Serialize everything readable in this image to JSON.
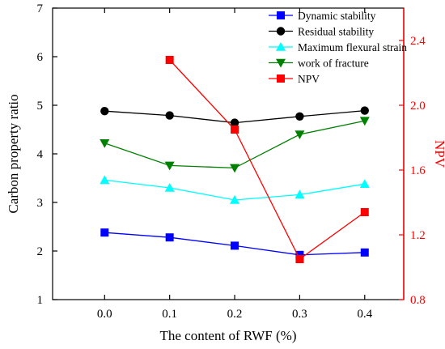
{
  "chart_data": {
    "type": "line",
    "title": "",
    "xlabel": "The content of RWF (%)",
    "ylabel": "Carbon property ratio",
    "y2label": "NPV",
    "x": [
      0.0,
      0.1,
      0.2,
      0.3,
      0.4
    ],
    "x_ticks": [
      "0.0",
      "0.1",
      "0.2",
      "0.3",
      "0.4"
    ],
    "xlim": [
      -0.08,
      0.46
    ],
    "ylim": [
      1,
      7
    ],
    "y_ticks": [
      "1",
      "2",
      "3",
      "4",
      "5",
      "6",
      "7"
    ],
    "y2lim": [
      0.8,
      2.6
    ],
    "y2_ticks": [
      "0.8",
      "1.2",
      "1.6",
      "2.0",
      "2.4"
    ],
    "grid": false,
    "legend_position": "top-right",
    "series": [
      {
        "name": "Dynamic stability",
        "axis": "left",
        "color": "#0000ff",
        "marker": "square",
        "x": [
          0.0,
          0.1,
          0.2,
          0.3,
          0.4
        ],
        "values": [
          2.38,
          2.28,
          2.11,
          1.92,
          1.97
        ]
      },
      {
        "name": "Residual stability",
        "axis": "left",
        "color": "#000000",
        "marker": "circle",
        "x": [
          0.0,
          0.1,
          0.2,
          0.3,
          0.4
        ],
        "values": [
          4.88,
          4.79,
          4.64,
          4.77,
          4.89
        ]
      },
      {
        "name": "Maximum flexural strain",
        "axis": "left",
        "color": "#00ffff",
        "marker": "triangle-up",
        "x": [
          0.0,
          0.1,
          0.2,
          0.3,
          0.4
        ],
        "values": [
          3.46,
          3.3,
          3.05,
          3.16,
          3.38
        ]
      },
      {
        "name": "work of fracture",
        "axis": "left",
        "color": "#008000",
        "marker": "triangle-down",
        "x": [
          0.0,
          0.1,
          0.2,
          0.3,
          0.4
        ],
        "values": [
          4.22,
          3.76,
          3.71,
          4.4,
          4.68
        ]
      },
      {
        "name": "NPV",
        "axis": "right",
        "color": "#ff0000",
        "marker": "square",
        "x": [
          0.1,
          0.2,
          0.3,
          0.4
        ],
        "values": [
          2.28,
          1.85,
          1.05,
          1.34
        ]
      }
    ]
  }
}
